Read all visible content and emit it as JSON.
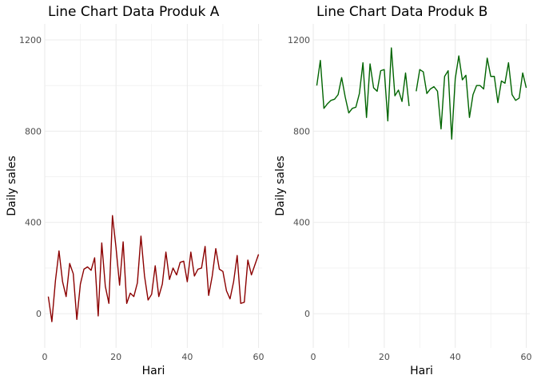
{
  "chart_data": [
    {
      "type": "line",
      "title": "Line Chart Data Produk A",
      "xlabel": "Hari",
      "ylabel": "Daily sales",
      "xlim": [
        0,
        61
      ],
      "ylim": [
        -150,
        1270
      ],
      "xticks": [
        0,
        20,
        40,
        60
      ],
      "yticks": [
        0,
        400,
        800,
        1200
      ],
      "grid": true,
      "color": "#8B0000",
      "series": [
        {
          "x": [
            1,
            2,
            3,
            4,
            5,
            6,
            7,
            8,
            9,
            10,
            11,
            12,
            13,
            14,
            15,
            16,
            17,
            18,
            19,
            20,
            21,
            22,
            23,
            24,
            25,
            26,
            27,
            28,
            29,
            30,
            31,
            32,
            33,
            34,
            35,
            36,
            37,
            38,
            39,
            40,
            41,
            42,
            43,
            44,
            45,
            46,
            47,
            48,
            49,
            50,
            51,
            52,
            53,
            54,
            55,
            56,
            57,
            58,
            59,
            60
          ],
          "values": [
            75,
            -35,
            145,
            275,
            140,
            75,
            220,
            175,
            -25,
            130,
            195,
            205,
            190,
            245,
            -10,
            310,
            120,
            45,
            430,
            290,
            125,
            315,
            45,
            90,
            75,
            135,
            340,
            165,
            60,
            85,
            210,
            75,
            130,
            270,
            150,
            200,
            170,
            225,
            230,
            140,
            270,
            165,
            195,
            200,
            295,
            80,
            165,
            285,
            195,
            185,
            100,
            65,
            140,
            255,
            45,
            50,
            235,
            170,
            215,
            260
          ]
        }
      ]
    },
    {
      "type": "line",
      "title": "Line Chart Data Produk B",
      "xlabel": "Hari",
      "ylabel": "Daily sales",
      "xlim": [
        0,
        61
      ],
      "ylim": [
        -150,
        1270
      ],
      "xticks": [
        0,
        20,
        40,
        60
      ],
      "yticks": [
        0,
        400,
        800,
        1200
      ],
      "grid": true,
      "color": "#006400",
      "series": [
        {
          "x": [
            1,
            2,
            3,
            4,
            5,
            6,
            7,
            8,
            9,
            10,
            11,
            12,
            13,
            14,
            15,
            16,
            17,
            18,
            19,
            20,
            21,
            22,
            23,
            24,
            25,
            26,
            27,
            28,
            29,
            30,
            31,
            32,
            33,
            34,
            35,
            36,
            37,
            38,
            39,
            40,
            41,
            42,
            43,
            44,
            45,
            46,
            47,
            48,
            49,
            50,
            51,
            52,
            53,
            54,
            55,
            56,
            57,
            58,
            59,
            60
          ],
          "values": [
            1000,
            1110,
            900,
            920,
            935,
            940,
            960,
            1035,
            950,
            880,
            900,
            905,
            965,
            1100,
            860,
            1095,
            990,
            975,
            1065,
            1070,
            845,
            1165,
            955,
            980,
            930,
            1055,
            910,
            null,
            975,
            1070,
            1060,
            965,
            985,
            995,
            975,
            810,
            1040,
            1065,
            765,
            1030,
            1130,
            1025,
            1045,
            860,
            960,
            1000,
            1000,
            985,
            1120,
            1040,
            1040,
            925,
            1020,
            1010,
            1100,
            960,
            935,
            945,
            1055,
            990
          ]
        }
      ]
    }
  ]
}
